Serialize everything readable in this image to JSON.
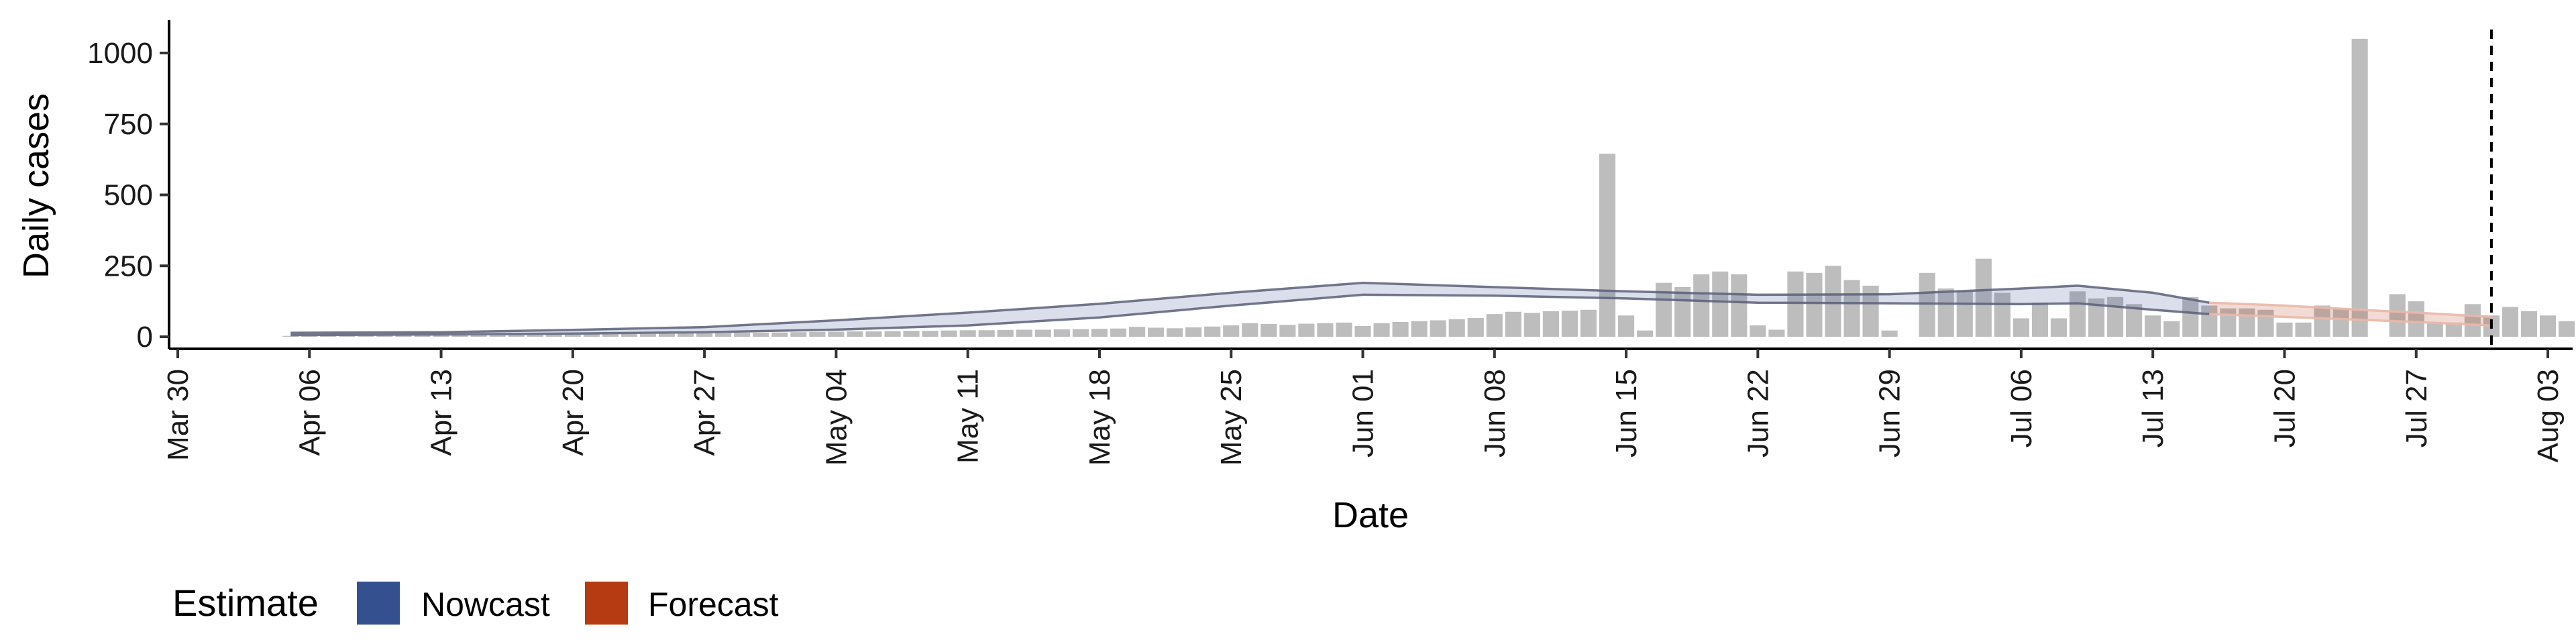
{
  "chart_data": {
    "type": "bar",
    "xlabel": "Date",
    "ylabel": "Daily cases",
    "ylim": [
      -40,
      1100
    ],
    "yticks": [
      0,
      250,
      500,
      750,
      1000
    ],
    "xlim": [
      "2020-03-30",
      "2020-08-05"
    ],
    "xticks": [
      {
        "date": "2020-03-30",
        "label": "Mar 30"
      },
      {
        "date": "2020-04-06",
        "label": "Apr 06"
      },
      {
        "date": "2020-04-13",
        "label": "Apr 13"
      },
      {
        "date": "2020-04-20",
        "label": "Apr 20"
      },
      {
        "date": "2020-04-27",
        "label": "Apr 27"
      },
      {
        "date": "2020-05-04",
        "label": "May 04"
      },
      {
        "date": "2020-05-11",
        "label": "May 11"
      },
      {
        "date": "2020-05-18",
        "label": "May 18"
      },
      {
        "date": "2020-05-25",
        "label": "May 25"
      },
      {
        "date": "2020-06-01",
        "label": "Jun 01"
      },
      {
        "date": "2020-06-08",
        "label": "Jun 08"
      },
      {
        "date": "2020-06-15",
        "label": "Jun 15"
      },
      {
        "date": "2020-06-22",
        "label": "Jun 22"
      },
      {
        "date": "2020-06-29",
        "label": "Jun 29"
      },
      {
        "date": "2020-07-06",
        "label": "Jul 06"
      },
      {
        "date": "2020-07-13",
        "label": "Jul 13"
      },
      {
        "date": "2020-07-20",
        "label": "Jul 20"
      },
      {
        "date": "2020-07-27",
        "label": "Jul 27"
      },
      {
        "date": "2020-08-03",
        "label": "Aug 03"
      }
    ],
    "bars": {
      "start_date": "2020-04-05",
      "values": [
        3,
        3,
        4,
        4,
        4,
        4,
        5,
        5,
        5,
        6,
        6,
        6,
        7,
        7,
        8,
        8,
        9,
        9,
        10,
        10,
        11,
        12,
        12,
        13,
        14,
        14,
        15,
        16,
        17,
        18,
        19,
        19,
        20,
        21,
        21,
        22,
        23,
        23,
        24,
        25,
        25,
        26,
        27,
        28,
        29,
        35,
        32,
        30,
        33,
        36,
        40,
        48,
        45,
        42,
        46,
        48,
        50,
        38,
        48,
        52,
        55,
        58,
        62,
        66,
        80,
        88,
        84,
        90,
        92,
        95,
        645,
        75,
        22,
        190,
        175,
        220,
        230,
        220,
        40,
        25,
        230,
        225,
        250,
        200,
        180,
        22,
        0,
        225,
        170,
        160,
        275,
        155,
        65,
        120,
        65,
        160,
        135,
        140,
        115,
        75,
        55,
        140,
        110,
        100,
        100,
        95,
        50,
        50,
        110,
        100,
        1050,
        0,
        150,
        125,
        50,
        50,
        115,
        75,
        105,
        90,
        75,
        55,
        40
      ]
    },
    "series": [
      {
        "name": "Nowcast",
        "color": "#34508f",
        "x": [
          "2020-04-05",
          "2020-04-13",
          "2020-04-20",
          "2020-04-27",
          "2020-05-04",
          "2020-05-11",
          "2020-05-18",
          "2020-05-25",
          "2020-06-01",
          "2020-06-08",
          "2020-06-15",
          "2020-06-22",
          "2020-06-29",
          "2020-07-06",
          "2020-07-09",
          "2020-07-13",
          "2020-07-16"
        ],
        "lower": [
          6,
          8,
          11,
          16,
          25,
          40,
          68,
          110,
          148,
          145,
          135,
          120,
          118,
          115,
          118,
          95,
          80
        ],
        "upper": [
          14,
          16,
          24,
          34,
          58,
          85,
          116,
          155,
          190,
          175,
          160,
          148,
          150,
          170,
          180,
          155,
          120
        ]
      },
      {
        "name": "Forecast",
        "color": "#b63a12",
        "x": [
          "2020-07-16",
          "2020-07-20",
          "2020-07-24",
          "2020-07-27",
          "2020-07-31"
        ],
        "lower": [
          80,
          70,
          60,
          52,
          40
        ],
        "upper": [
          120,
          110,
          95,
          85,
          70
        ]
      }
    ],
    "vline": "2020-07-31",
    "legend": {
      "position": "bottom-left",
      "title": "Estimate",
      "items": [
        {
          "label": "Nowcast",
          "color": "#34508f"
        },
        {
          "label": "Forecast",
          "color": "#b63a12"
        }
      ]
    },
    "grid": false
  }
}
